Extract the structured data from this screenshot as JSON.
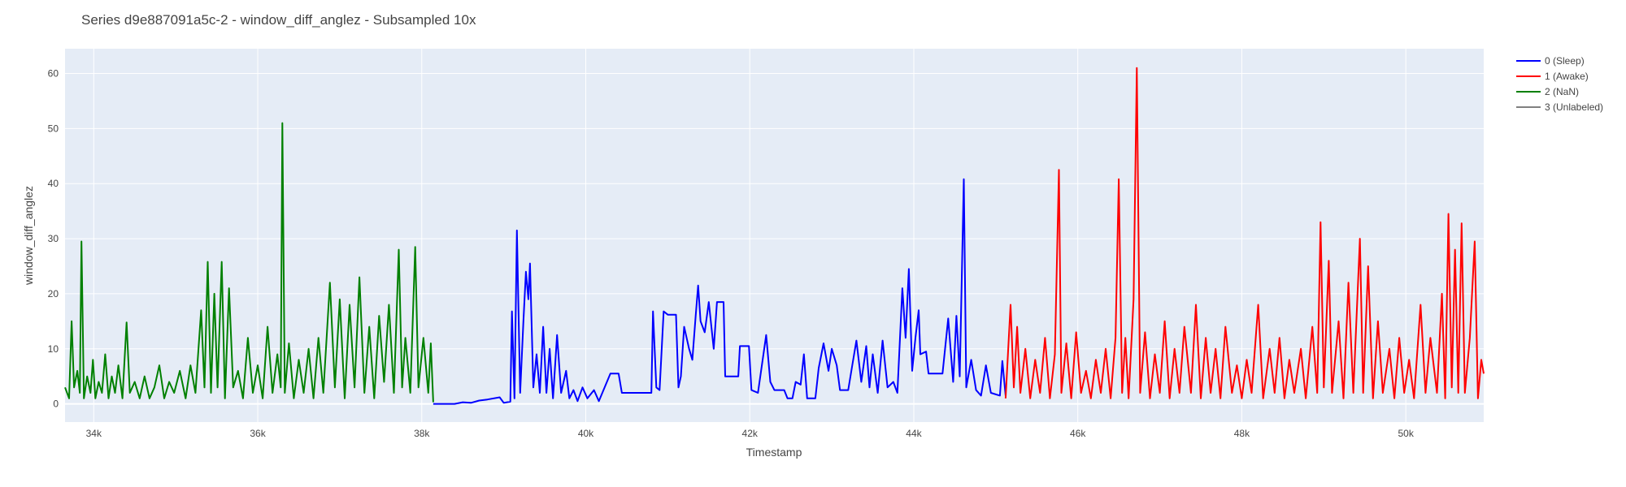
{
  "chart_data": {
    "type": "line",
    "title": "Series d9e887091a5c-2 - window_diff_anglez - Subsampled 10x",
    "xlabel": "Timestamp",
    "ylabel": "window_diff_anglez",
    "xlim": [
      33650,
      50950
    ],
    "ylim": [
      -3.3,
      64.5
    ],
    "xticks": [
      34000,
      36000,
      38000,
      40000,
      42000,
      44000,
      46000,
      48000,
      50000
    ],
    "xtick_labels": [
      "34k",
      "36k",
      "38k",
      "40k",
      "42k",
      "44k",
      "46k",
      "48k",
      "50k"
    ],
    "yticks": [
      0,
      10,
      20,
      30,
      40,
      50,
      60
    ],
    "ytick_labels": [
      "0",
      "10",
      "20",
      "30",
      "40",
      "50",
      "60"
    ],
    "grid": true,
    "legend_position": "top-right",
    "legend": [
      {
        "label": "0 (Sleep)",
        "color": "#0000ff"
      },
      {
        "label": "1 (Awake)",
        "color": "#ff0000"
      },
      {
        "label": "2 (NaN)",
        "color": "#008000"
      },
      {
        "label": "3 (Unlabeled)",
        "color": "#808080"
      }
    ],
    "series": [
      {
        "name": "2 (NaN)",
        "color": "#008000",
        "points": [
          [
            33650,
            3
          ],
          [
            33700,
            1
          ],
          [
            33730,
            15
          ],
          [
            33760,
            3
          ],
          [
            33800,
            6
          ],
          [
            33830,
            2
          ],
          [
            33850,
            29.5
          ],
          [
            33880,
            1
          ],
          [
            33920,
            5
          ],
          [
            33960,
            2
          ],
          [
            33990,
            8
          ],
          [
            34020,
            1
          ],
          [
            34060,
            4
          ],
          [
            34100,
            2
          ],
          [
            34140,
            9
          ],
          [
            34180,
            1
          ],
          [
            34220,
            5
          ],
          [
            34260,
            2
          ],
          [
            34300,
            7
          ],
          [
            34350,
            1
          ],
          [
            34400,
            14.8
          ],
          [
            34440,
            2
          ],
          [
            34500,
            4
          ],
          [
            34560,
            1
          ],
          [
            34620,
            5
          ],
          [
            34680,
            1
          ],
          [
            34740,
            3
          ],
          [
            34800,
            7
          ],
          [
            34860,
            1
          ],
          [
            34920,
            4
          ],
          [
            34980,
            2
          ],
          [
            35050,
            6
          ],
          [
            35120,
            1
          ],
          [
            35180,
            7
          ],
          [
            35240,
            2
          ],
          [
            35310,
            17
          ],
          [
            35350,
            3
          ],
          [
            35390,
            25.8
          ],
          [
            35430,
            2
          ],
          [
            35470,
            20
          ],
          [
            35510,
            3
          ],
          [
            35560,
            25.8
          ],
          [
            35600,
            1
          ],
          [
            35650,
            21
          ],
          [
            35700,
            3
          ],
          [
            35760,
            6
          ],
          [
            35820,
            1
          ],
          [
            35880,
            12
          ],
          [
            35940,
            2
          ],
          [
            36000,
            7
          ],
          [
            36060,
            1
          ],
          [
            36120,
            14
          ],
          [
            36180,
            2
          ],
          [
            36240,
            9
          ],
          [
            36280,
            3
          ],
          [
            36300,
            51
          ],
          [
            36330,
            2
          ],
          [
            36380,
            11
          ],
          [
            36440,
            1
          ],
          [
            36500,
            8
          ],
          [
            36560,
            2
          ],
          [
            36620,
            10
          ],
          [
            36680,
            1
          ],
          [
            36740,
            12
          ],
          [
            36800,
            2
          ],
          [
            36880,
            22
          ],
          [
            36940,
            3
          ],
          [
            37000,
            19
          ],
          [
            37060,
            1
          ],
          [
            37120,
            18
          ],
          [
            37180,
            3
          ],
          [
            37240,
            23
          ],
          [
            37300,
            2
          ],
          [
            37360,
            14
          ],
          [
            37420,
            1
          ],
          [
            37480,
            16
          ],
          [
            37540,
            4
          ],
          [
            37600,
            18
          ],
          [
            37660,
            2
          ],
          [
            37720,
            28
          ],
          [
            37760,
            3
          ],
          [
            37800,
            12
          ],
          [
            37860,
            2
          ],
          [
            37920,
            28.5
          ],
          [
            37960,
            3
          ],
          [
            38020,
            12
          ],
          [
            38080,
            2
          ],
          [
            38110,
            11
          ],
          [
            38140,
            0.3
          ]
        ]
      },
      {
        "name": "0 (Sleep)",
        "color": "#0000ff",
        "points": [
          [
            38140,
            0
          ],
          [
            38400,
            0
          ],
          [
            38500,
            0.3
          ],
          [
            38600,
            0.2
          ],
          [
            38700,
            0.6
          ],
          [
            38800,
            0.8
          ],
          [
            38950,
            1.2
          ],
          [
            39000,
            0.2
          ],
          [
            39080,
            0.4
          ],
          [
            39100,
            16.8
          ],
          [
            39130,
            1
          ],
          [
            39160,
            31.5
          ],
          [
            39200,
            2
          ],
          [
            39240,
            15
          ],
          [
            39270,
            24
          ],
          [
            39300,
            19
          ],
          [
            39320,
            25.5
          ],
          [
            39360,
            3
          ],
          [
            39400,
            9
          ],
          [
            39440,
            2
          ],
          [
            39480,
            14
          ],
          [
            39520,
            2
          ],
          [
            39560,
            10
          ],
          [
            39600,
            1
          ],
          [
            39650,
            12.5
          ],
          [
            39700,
            2
          ],
          [
            39760,
            6
          ],
          [
            39800,
            1
          ],
          [
            39850,
            2.5
          ],
          [
            39900,
            0.5
          ],
          [
            39960,
            3
          ],
          [
            40020,
            1
          ],
          [
            40100,
            2.5
          ],
          [
            40160,
            0.5
          ],
          [
            40300,
            5.5
          ],
          [
            40400,
            5.5
          ],
          [
            40440,
            2
          ],
          [
            40800,
            2
          ],
          [
            40820,
            16.8
          ],
          [
            40860,
            3
          ],
          [
            40900,
            2.5
          ],
          [
            40950,
            16.8
          ],
          [
            41000,
            16.2
          ],
          [
            41100,
            16.2
          ],
          [
            41130,
            3
          ],
          [
            41160,
            5
          ],
          [
            41200,
            14
          ],
          [
            41260,
            10
          ],
          [
            41300,
            8
          ],
          [
            41340,
            16
          ],
          [
            41370,
            21.5
          ],
          [
            41400,
            15
          ],
          [
            41450,
            13
          ],
          [
            41500,
            18.5
          ],
          [
            41560,
            10
          ],
          [
            41600,
            18.5
          ],
          [
            41680,
            18.5
          ],
          [
            41700,
            5
          ],
          [
            41860,
            5
          ],
          [
            41880,
            10.5
          ],
          [
            41990,
            10.5
          ],
          [
            42020,
            2.5
          ],
          [
            42100,
            2
          ],
          [
            42200,
            12.5
          ],
          [
            42250,
            4
          ],
          [
            42300,
            2.5
          ],
          [
            42420,
            2.5
          ],
          [
            42460,
            1
          ],
          [
            42520,
            1
          ],
          [
            42560,
            4
          ],
          [
            42620,
            3.5
          ],
          [
            42660,
            9
          ],
          [
            42700,
            1
          ],
          [
            42800,
            1
          ],
          [
            42840,
            6.5
          ],
          [
            42900,
            11
          ],
          [
            42960,
            6
          ],
          [
            43000,
            10
          ],
          [
            43060,
            7
          ],
          [
            43100,
            2.5
          ],
          [
            43200,
            2.5
          ],
          [
            43250,
            7
          ],
          [
            43300,
            11.5
          ],
          [
            43360,
            4
          ],
          [
            43420,
            10.5
          ],
          [
            43460,
            3
          ],
          [
            43500,
            9
          ],
          [
            43560,
            2
          ],
          [
            43620,
            11.5
          ],
          [
            43680,
            3
          ],
          [
            43750,
            4
          ],
          [
            43800,
            2
          ],
          [
            43860,
            21
          ],
          [
            43900,
            12
          ],
          [
            43940,
            24.5
          ],
          [
            43980,
            6
          ],
          [
            44020,
            12
          ],
          [
            44060,
            17
          ],
          [
            44080,
            9
          ],
          [
            44150,
            9.5
          ],
          [
            44180,
            5.5
          ],
          [
            44350,
            5.5
          ],
          [
            44420,
            15.5
          ],
          [
            44480,
            4
          ],
          [
            44520,
            16
          ],
          [
            44560,
            5
          ],
          [
            44610,
            40.8
          ],
          [
            44640,
            3
          ],
          [
            44700,
            8
          ],
          [
            44760,
            2.5
          ],
          [
            44820,
            1.5
          ],
          [
            44880,
            7
          ],
          [
            44940,
            2
          ],
          [
            45050,
            1.5
          ],
          [
            45080,
            7.8
          ],
          [
            45120,
            1.5
          ]
        ]
      },
      {
        "name": "1 (Awake)",
        "color": "#ff0000",
        "points": [
          [
            45120,
            1
          ],
          [
            45180,
            18
          ],
          [
            45220,
            3
          ],
          [
            45260,
            14
          ],
          [
            45300,
            2
          ],
          [
            45360,
            10
          ],
          [
            45420,
            1
          ],
          [
            45480,
            8
          ],
          [
            45540,
            2
          ],
          [
            45600,
            12
          ],
          [
            45660,
            1
          ],
          [
            45720,
            9
          ],
          [
            45770,
            42.5
          ],
          [
            45800,
            2
          ],
          [
            45860,
            11
          ],
          [
            45920,
            1
          ],
          [
            45980,
            13
          ],
          [
            46040,
            2
          ],
          [
            46100,
            6
          ],
          [
            46160,
            1
          ],
          [
            46220,
            8
          ],
          [
            46280,
            2
          ],
          [
            46340,
            10
          ],
          [
            46400,
            1
          ],
          [
            46460,
            12
          ],
          [
            46500,
            40.8
          ],
          [
            46540,
            2
          ],
          [
            46580,
            12
          ],
          [
            46620,
            1
          ],
          [
            46680,
            19
          ],
          [
            46720,
            61
          ],
          [
            46760,
            2
          ],
          [
            46820,
            13
          ],
          [
            46880,
            1
          ],
          [
            46940,
            9
          ],
          [
            47000,
            2
          ],
          [
            47060,
            15
          ],
          [
            47120,
            1
          ],
          [
            47180,
            10
          ],
          [
            47240,
            2
          ],
          [
            47300,
            14
          ],
          [
            47380,
            2
          ],
          [
            47440,
            18
          ],
          [
            47500,
            1
          ],
          [
            47560,
            12
          ],
          [
            47620,
            2
          ],
          [
            47680,
            10
          ],
          [
            47740,
            1
          ],
          [
            47800,
            14
          ],
          [
            47880,
            2
          ],
          [
            47940,
            7
          ],
          [
            48000,
            1
          ],
          [
            48060,
            8
          ],
          [
            48120,
            2
          ],
          [
            48200,
            18
          ],
          [
            48260,
            1
          ],
          [
            48340,
            10
          ],
          [
            48400,
            2
          ],
          [
            48460,
            12
          ],
          [
            48520,
            1
          ],
          [
            48580,
            8
          ],
          [
            48640,
            2
          ],
          [
            48720,
            10
          ],
          [
            48780,
            1
          ],
          [
            48860,
            14
          ],
          [
            48920,
            2
          ],
          [
            48960,
            33
          ],
          [
            49000,
            3
          ],
          [
            49060,
            26
          ],
          [
            49100,
            2
          ],
          [
            49180,
            15
          ],
          [
            49240,
            1
          ],
          [
            49300,
            22
          ],
          [
            49360,
            2
          ],
          [
            49440,
            30
          ],
          [
            49480,
            2
          ],
          [
            49540,
            25
          ],
          [
            49600,
            1
          ],
          [
            49660,
            15
          ],
          [
            49720,
            2
          ],
          [
            49800,
            10
          ],
          [
            49860,
            1
          ],
          [
            49920,
            12
          ],
          [
            49980,
            2
          ],
          [
            50040,
            8
          ],
          [
            50100,
            1
          ],
          [
            50180,
            18
          ],
          [
            50240,
            2
          ],
          [
            50300,
            12
          ],
          [
            50380,
            2
          ],
          [
            50440,
            20
          ],
          [
            50480,
            1
          ],
          [
            50520,
            34.5
          ],
          [
            50560,
            3
          ],
          [
            50600,
            28
          ],
          [
            50640,
            2
          ],
          [
            50680,
            32.8
          ],
          [
            50720,
            2
          ],
          [
            50780,
            12
          ],
          [
            50840,
            29.5
          ],
          [
            50880,
            1
          ],
          [
            50920,
            8
          ],
          [
            50950,
            5.5
          ]
        ]
      }
    ]
  }
}
